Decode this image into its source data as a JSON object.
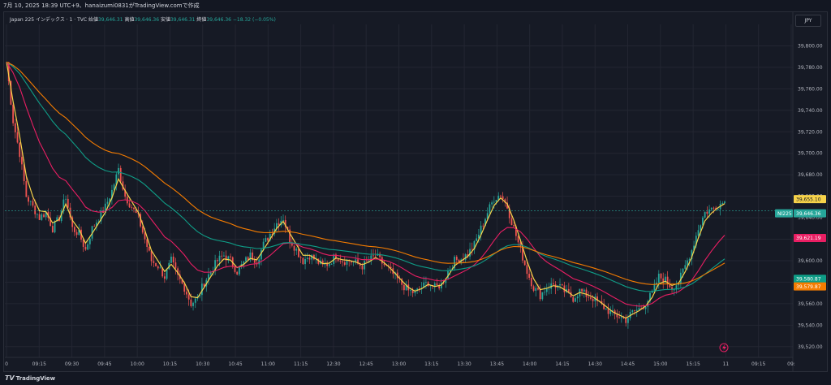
{
  "header": {
    "caption": "7月 10, 2025 18:39 UTC+9、hanaizumi0831がTradingView.comで作成"
  },
  "legend": {
    "symbol": "Japan 225 インデックス · 1 · TVC",
    "open_label": "始値",
    "open": "39,646.31",
    "high_label": "高値",
    "high": "39,646.36",
    "low_label": "安値",
    "low": "39,646.31",
    "close_label": "終値",
    "close": "39,646.36",
    "change": "−18.32 (−0.05%)"
  },
  "currency_button": "JPY",
  "brand": {
    "name": "TradingView",
    "logo": "tradingview-logo"
  },
  "flash_icon": "lightning-icon",
  "colors": {
    "background": "#161a25",
    "grid": "#232632",
    "up": "#26a69a",
    "down": "#ef5350",
    "ma_fast": "#f7d34a",
    "ma_mid": "#e91e63",
    "ma_slow_teal": "#0f9d87",
    "ma_slow_orange": "#f57c00"
  },
  "chart_data": {
    "type": "line",
    "subtype": "candlestick-with-moving-averages",
    "ylim": [
      39510,
      39820
    ],
    "y_ticks": [
      "39,800.00",
      "39,780.00",
      "39,760.00",
      "39,740.00",
      "39,720.00",
      "39,700.00",
      "39,680.00",
      "39,660.00",
      "39,640.00",
      "39,620.00",
      "39,600.00",
      "39,580.00",
      "39,560.00",
      "39,540.00",
      "39,520.00"
    ],
    "y_tick_values": [
      39800,
      39780,
      39760,
      39740,
      39720,
      39700,
      39680,
      39660,
      39640,
      39620,
      39600,
      39580,
      39560,
      39540,
      39520
    ],
    "x_ticks": [
      "0",
      "09:15",
      "09:30",
      "09:45",
      "10:00",
      "10:15",
      "10:30",
      "10:45",
      "11:00",
      "11:15",
      "12:30",
      "12:45",
      "13:00",
      "13:15",
      "13:30",
      "13:45",
      "14:00",
      "14:15",
      "14:30",
      "14:45",
      "15:00",
      "15:15",
      "11",
      "09:15",
      "09:"
    ],
    "grid": true,
    "price_close": [
      39785,
      39730,
      39700,
      39660,
      39650,
      39640,
      39645,
      39630,
      39640,
      39660,
      39630,
      39625,
      39610,
      39630,
      39640,
      39650,
      39665,
      39685,
      39660,
      39650,
      39640,
      39620,
      39600,
      39595,
      39585,
      39600,
      39585,
      39575,
      39560,
      39565,
      39580,
      39590,
      39600,
      39605,
      39600,
      39590,
      39598,
      39605,
      39600,
      39615,
      39625,
      39635,
      39640,
      39620,
      39610,
      39600,
      39605,
      39600,
      39595,
      39598,
      39605,
      39600,
      39600,
      39598,
      39595,
      39600,
      39605,
      39598,
      39592,
      39585,
      39578,
      39572,
      39570,
      39575,
      39580,
      39575,
      39578,
      39590,
      39600,
      39602,
      39606,
      39615,
      39630,
      39645,
      39658,
      39662,
      39650,
      39630,
      39610,
      39590,
      39575,
      39568,
      39575,
      39578,
      39575,
      39570,
      39565,
      39572,
      39568,
      39565,
      39560,
      39555,
      39550,
      39548,
      39545,
      39552,
      39555,
      39560,
      39570,
      39585,
      39582,
      39575,
      39580,
      39595,
      39610,
      39630,
      39645,
      39648,
      39652,
      39655
    ],
    "series": [
      {
        "name": "NI225",
        "style": "candles"
      }
    ],
    "price_labels": [
      {
        "text": "39,655.10",
        "value": 39655.1,
        "color": "#f7d34a"
      },
      {
        "text": "NI225",
        "value": 39646.36,
        "color": "#26a69a",
        "is_symbol": true
      },
      {
        "text": "39,646.36",
        "value": 39646.36,
        "color": "#26a69a"
      },
      {
        "text": "39,621.19",
        "value": 39621.19,
        "color": "#e91e63"
      },
      {
        "text": "39,580.87",
        "value": 39580.87,
        "color": "#0f9d87"
      },
      {
        "text": "39,579.87",
        "value": 39579.87,
        "color": "#f57c00"
      }
    ]
  }
}
